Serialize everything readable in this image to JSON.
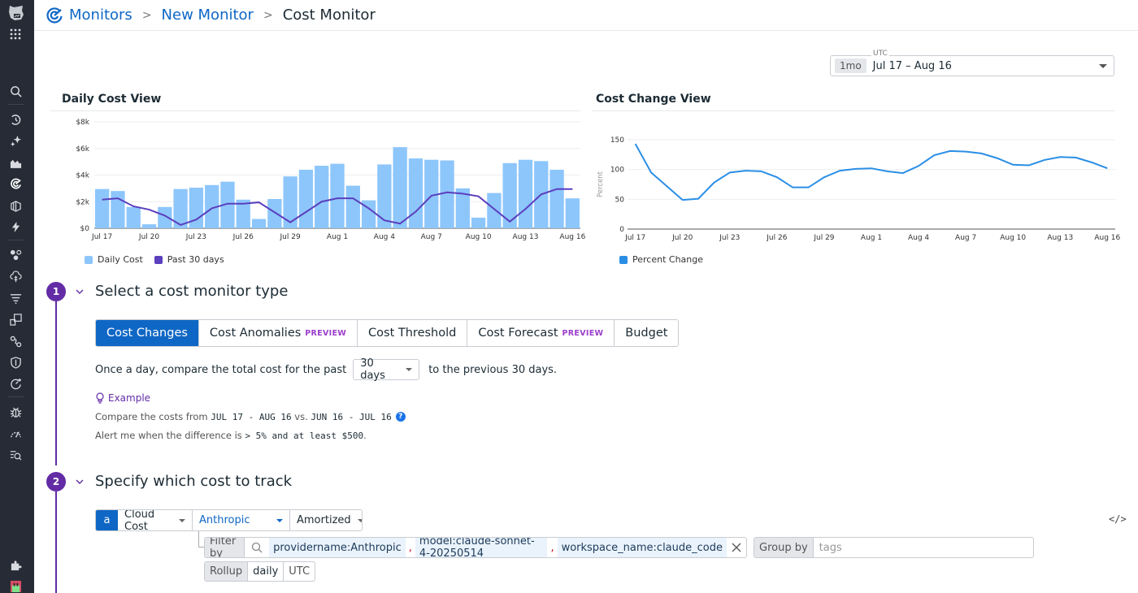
{
  "breadcrumb": {
    "items": [
      "Monitors",
      "New Monitor"
    ],
    "current": "Cost Monitor"
  },
  "sidebar": {
    "icons": [
      "search-icon",
      "history-icon",
      "sparkle-icon",
      "dashboard-chart-icon",
      "monitors-icon",
      "infrastructure-icon",
      "bolt-icon",
      "apm-icon",
      "cloud-cost-icon",
      "logs-icon",
      "integrations-icon",
      "service-map-icon",
      "security-icon",
      "synthetics-icon",
      "bug-icon",
      "gauge-icon",
      "watchdog-icon",
      "extensions-icon",
      "avatar"
    ]
  },
  "timepicker": {
    "tz": "UTC",
    "preset": "1mo",
    "range": "Jul 17 – Aug 16"
  },
  "daily_chart": {
    "title": "Daily Cost View",
    "legend": [
      "Daily Cost",
      "Past 30 days"
    ]
  },
  "change_chart": {
    "title": "Cost Change View",
    "legend": [
      "Percent Change"
    ],
    "ylabel": "Percent"
  },
  "chart_data": [
    {
      "type": "bar",
      "title": "Daily Cost View",
      "xlabel": "",
      "ylabel": "",
      "ylim": [
        0,
        8000
      ],
      "yticks": [
        "$0",
        "$2k",
        "$4k",
        "$6k",
        "$8k"
      ],
      "xticks": [
        "Jul 17",
        "Jul 20",
        "Jul 23",
        "Jul 26",
        "Jul 29",
        "Aug 1",
        "Aug 4",
        "Aug 7",
        "Aug 10",
        "Aug 13",
        "Aug 16"
      ],
      "categories": [
        "Jul 17",
        "Jul 18",
        "Jul 19",
        "Jul 20",
        "Jul 21",
        "Jul 22",
        "Jul 23",
        "Jul 24",
        "Jul 25",
        "Jul 26",
        "Jul 27",
        "Jul 28",
        "Jul 29",
        "Jul 30",
        "Jul 31",
        "Aug 1",
        "Aug 2",
        "Aug 3",
        "Aug 4",
        "Aug 5",
        "Aug 6",
        "Aug 7",
        "Aug 8",
        "Aug 9",
        "Aug 10",
        "Aug 11",
        "Aug 12",
        "Aug 13",
        "Aug 14",
        "Aug 15",
        "Aug 16"
      ],
      "series": [
        {
          "name": "Daily Cost",
          "type": "bar",
          "color": "#8dc6fb",
          "values": [
            2950,
            2800,
            1600,
            300,
            1600,
            2950,
            3050,
            3250,
            3500,
            2150,
            700,
            2200,
            3900,
            4400,
            4700,
            4850,
            3200,
            2100,
            4800,
            6100,
            5250,
            5150,
            5100,
            3000,
            800,
            2650,
            4900,
            5150,
            5050,
            4400,
            2250
          ]
        },
        {
          "name": "Past 30 days",
          "type": "line",
          "color": "#5b3fbe",
          "values": [
            2150,
            2250,
            1650,
            1400,
            950,
            250,
            650,
            1500,
            1850,
            1850,
            1950,
            null,
            450,
            null,
            2000,
            2250,
            2250,
            1500,
            600,
            350,
            1250,
            2450,
            2700,
            2600,
            2400,
            null,
            500,
            1450,
            2550,
            2950,
            2950
          ]
        }
      ],
      "legend_position": "bottom-left",
      "grid": true
    },
    {
      "type": "line",
      "title": "Cost Change View",
      "xlabel": "",
      "ylabel": "Percent",
      "ylim": [
        0,
        150
      ],
      "yticks": [
        0,
        50,
        100,
        150
      ],
      "xticks": [
        "Jul 17",
        "Jul 20",
        "Jul 23",
        "Jul 26",
        "Jul 29",
        "Aug 1",
        "Aug 4",
        "Aug 7",
        "Aug 10",
        "Aug 13",
        "Aug 16"
      ],
      "categories": [
        "Jul 17",
        "Jul 18",
        "Jul 19",
        "Jul 20",
        "Jul 21",
        "Jul 22",
        "Jul 23",
        "Jul 24",
        "Jul 25",
        "Jul 26",
        "Jul 27",
        "Jul 28",
        "Jul 29",
        "Jul 30",
        "Jul 31",
        "Aug 1",
        "Aug 2",
        "Aug 3",
        "Aug 4",
        "Aug 5",
        "Aug 6",
        "Aug 7",
        "Aug 8",
        "Aug 9",
        "Aug 10",
        "Aug 11",
        "Aug 12",
        "Aug 13",
        "Aug 14",
        "Aug 15",
        "Aug 16"
      ],
      "series": [
        {
          "name": "Percent Change",
          "color": "#2a8ee5",
          "values": [
            143,
            95,
            72,
            49,
            51,
            78,
            95,
            98,
            97,
            87,
            70,
            70,
            87,
            98,
            101,
            102,
            97,
            94,
            106,
            124,
            131,
            130,
            127,
            119,
            108,
            107,
            116,
            121,
            120,
            112,
            102
          ]
        }
      ],
      "legend_position": "bottom-left",
      "grid": true
    }
  ],
  "step1": {
    "number": "1",
    "title": "Select a cost monitor type",
    "tabs": [
      {
        "label": "Cost Changes",
        "badge": "",
        "active": true
      },
      {
        "label": "Cost Anomalies",
        "badge": "PREVIEW",
        "active": false
      },
      {
        "label": "Cost Threshold",
        "badge": "",
        "active": false
      },
      {
        "label": "Cost Forecast",
        "badge": "PREVIEW",
        "active": false
      },
      {
        "label": "Budget",
        "badge": "",
        "active": false
      }
    ],
    "sentence_prefix": "Once a day, compare the total cost for the past",
    "period_value": "30 days",
    "sentence_suffix": "to the previous 30 days.",
    "example_label": "Example",
    "example_line1_prefix": "Compare the costs from ",
    "example_range1": "JUL 17 - AUG 16",
    "example_vs": " vs. ",
    "example_range2": "JUN 16 - JUL 16",
    "example_line2_prefix": "Alert me when the difference is ",
    "example_condition": "> 5% and at least $500",
    "example_line2_suffix": "."
  },
  "step2": {
    "number": "2",
    "title": "Specify which cost to track",
    "query_letter": "a",
    "source": "Cloud Cost",
    "provider": "Anthropic",
    "cost_type": "Amortized",
    "filter_label": "Filter by",
    "filters": [
      "providername:Anthropic",
      "model:claude-sonnet-4-20250514",
      "workspace_name:claude_code"
    ],
    "group_label": "Group by",
    "group_placeholder": "tags",
    "rollup_label": "Rollup",
    "rollup_value": "daily",
    "rollup_tz": "UTC",
    "code_toggle": "</>"
  },
  "colors": {
    "accent": "#0f67c5",
    "step": "#632ca6",
    "bar": "#8dc6fb",
    "trend": "#5b3fbe",
    "percent": "#2a8ee5",
    "preview": "#9b3ecb"
  }
}
